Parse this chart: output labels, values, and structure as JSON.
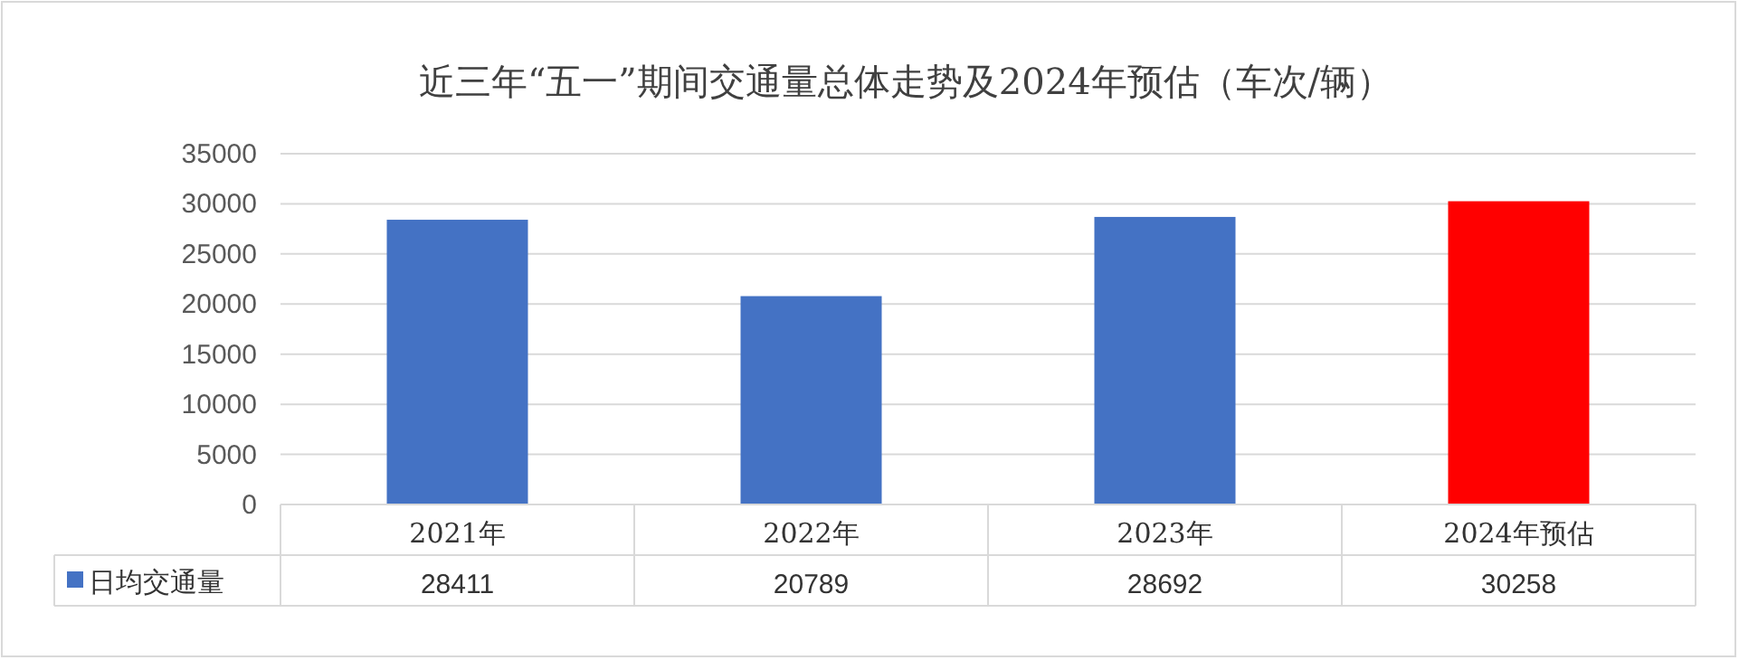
{
  "chart_data": {
    "type": "bar",
    "title": "近三年“五一”期间交通量总体走势及2024年预估（车次/辆）",
    "categories": [
      "2021年",
      "2022年",
      "2023年",
      "2024年预估"
    ],
    "series": [
      {
        "name": "日均交通量",
        "color": "#4472c4",
        "colors": [
          "#4472c4",
          "#4472c4",
          "#4472c4",
          "#ff0000"
        ],
        "values": [
          28411,
          20789,
          28692,
          30258
        ]
      }
    ],
    "ylim": [
      0,
      35000
    ],
    "yticks": [
      0,
      5000,
      10000,
      15000,
      20000,
      25000,
      30000,
      35000
    ],
    "grid": "y",
    "legend": "bottom",
    "data_labels": true
  }
}
